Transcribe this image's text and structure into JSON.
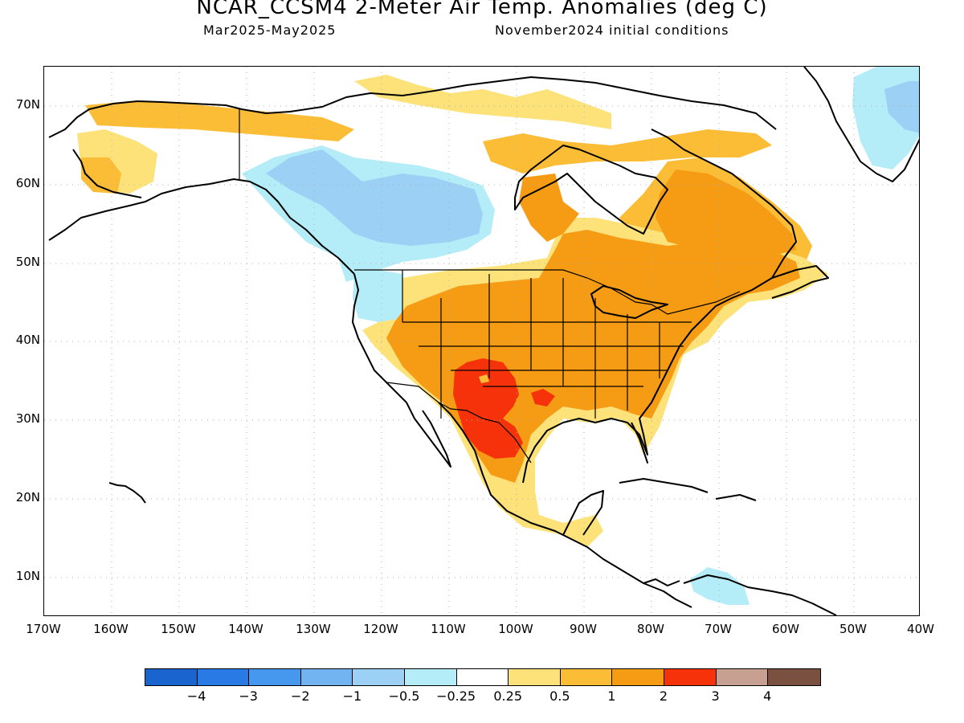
{
  "title": "NCAR_CCSM4 2-Meter Air Temp. Anomalies (deg C)",
  "subtitle_left": "Mar2025-May2025",
  "subtitle_right": "November2024 initial conditions",
  "map": {
    "region": "North America",
    "projection": "cylindrical lat-lon",
    "lon_range": [
      -170,
      -40
    ],
    "lat_range": [
      5,
      75
    ],
    "grid": "dotted",
    "lat_labels": [
      "70N",
      "60N",
      "50N",
      "40N",
      "30N",
      "20N",
      "10N"
    ],
    "lon_labels": [
      "170W",
      "160W",
      "150W",
      "140W",
      "130W",
      "120W",
      "110W",
      "100W",
      "90W",
      "80W",
      "70W",
      "60W",
      "50W",
      "40W"
    ],
    "anomaly_regions": [
      {
        "area": "Southwestern US / northern Mexico (New Mexico, west Texas)",
        "level": "2 to 3",
        "color": "#f5320a"
      },
      {
        "area": "Central and eastern US, eastern Canada, Quebec",
        "level": "1 to 2",
        "color": "#f59c14"
      },
      {
        "area": "Margins of warm area, Alaska, Canadian Arctic, Mexico",
        "level": "0.5 to 1",
        "color": "#fbbc36"
      },
      {
        "area": "Alaska west coast, Yucatan, Central America coasts",
        "level": "0.25 to 0.5",
        "color": "#fde27a"
      },
      {
        "area": "British Columbia, Alberta, Saskatchewan, Greenland interior",
        "level": "-1 to -0.5",
        "color": "#9dd0f5"
      },
      {
        "area": "Pacific Northwest coast, Caribbean near Venezuela",
        "level": "-0.5 to -0.25",
        "color": "#b4ecf8"
      }
    ]
  },
  "colorbar": {
    "colors": [
      "#1a64d0",
      "#2a7ae6",
      "#4598ee",
      "#72b4f2",
      "#9dd0f5",
      "#b4ecf8",
      "#ffffff",
      "#fde27a",
      "#fbbc36",
      "#f59c14",
      "#f5320a",
      "#c8a092",
      "#7a5040"
    ],
    "labels": [
      "−4",
      "−3",
      "−2",
      "−1",
      "−0.5",
      "−0.25",
      "0.25",
      "0.5",
      "1",
      "2",
      "3",
      "4"
    ]
  }
}
